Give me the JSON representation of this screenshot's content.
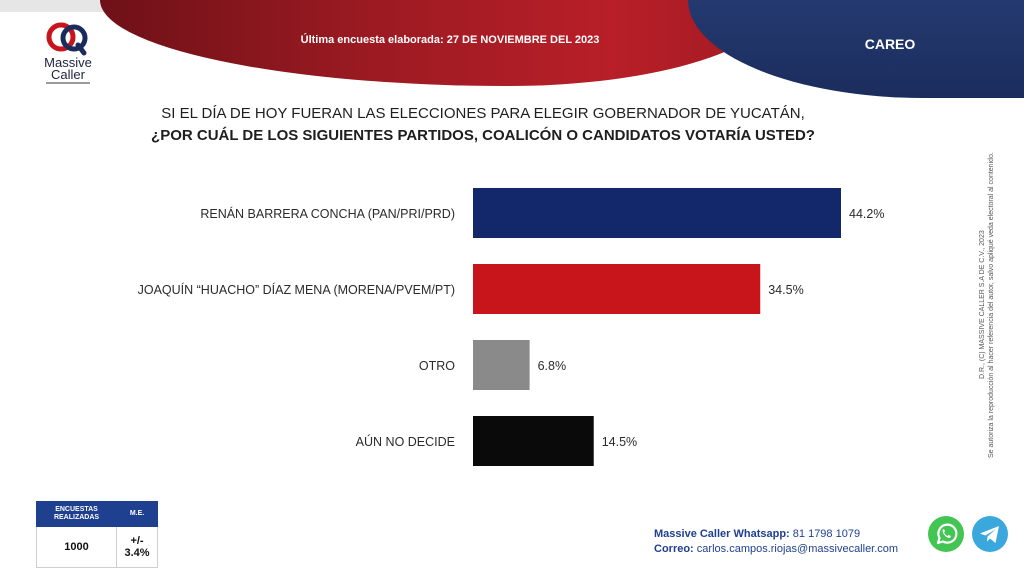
{
  "header": {
    "banner_text": "Última encuesta elaborada: 27 DE NOVIEMBRE DEL 2023",
    "section": "CAREO",
    "logo_line1": "Massive",
    "logo_line2": "Caller"
  },
  "question": {
    "line1": "SI EL DÍA DE HOY FUERAN LAS ELECCIONES PARA ELEGIR GOBERNADOR DE YUCATÁN,",
    "line2": "¿POR CUÁL DE LOS SIGUIENTES PARTIDOS, COALICÓN  O CANDIDATOS VOTARÍA USTED?"
  },
  "chart_data": {
    "type": "bar",
    "orientation": "horizontal",
    "categories": [
      "RENÁN BARRERA CONCHA  (PAN/PRI/PRD)",
      "JOAQUÍN “HUACHO” DÍAZ MENA  (MORENA/PVEM/PT)",
      "OTRO",
      "AÚN NO DECIDE"
    ],
    "values": [
      44.2,
      34.5,
      6.8,
      14.5
    ],
    "value_labels": [
      "44.2%",
      "34.5%",
      "6.8%",
      "14.5%"
    ],
    "colors": [
      "#13286b",
      "#c8141b",
      "#8a8a8a",
      "#0a0a0a"
    ],
    "xlim": [
      0,
      50
    ],
    "grid": false,
    "legend": "none"
  },
  "side_note": {
    "line1": "D.R., (C) MASSIVE CALLER S.A DE C.V., 2023",
    "line2": "Se autoriza la reproducción al hacer referencia del autor, salvo apliqué veda electoral al contenido."
  },
  "stats": {
    "col1_header": "ENCUESTAS REALIZADAS",
    "col2_header": "M.E.",
    "col1_value": "1000",
    "col2_value": "+/- 3.4%"
  },
  "contact": {
    "whatsapp_label": "Massive Caller Whatsapp:",
    "whatsapp_number": "81 1798 1079",
    "email_label": "Correo:",
    "email": "carlos.campos.riojas@massivecaller.com"
  },
  "icons": {
    "whatsapp": "whatsapp-icon",
    "telegram": "telegram-icon"
  }
}
